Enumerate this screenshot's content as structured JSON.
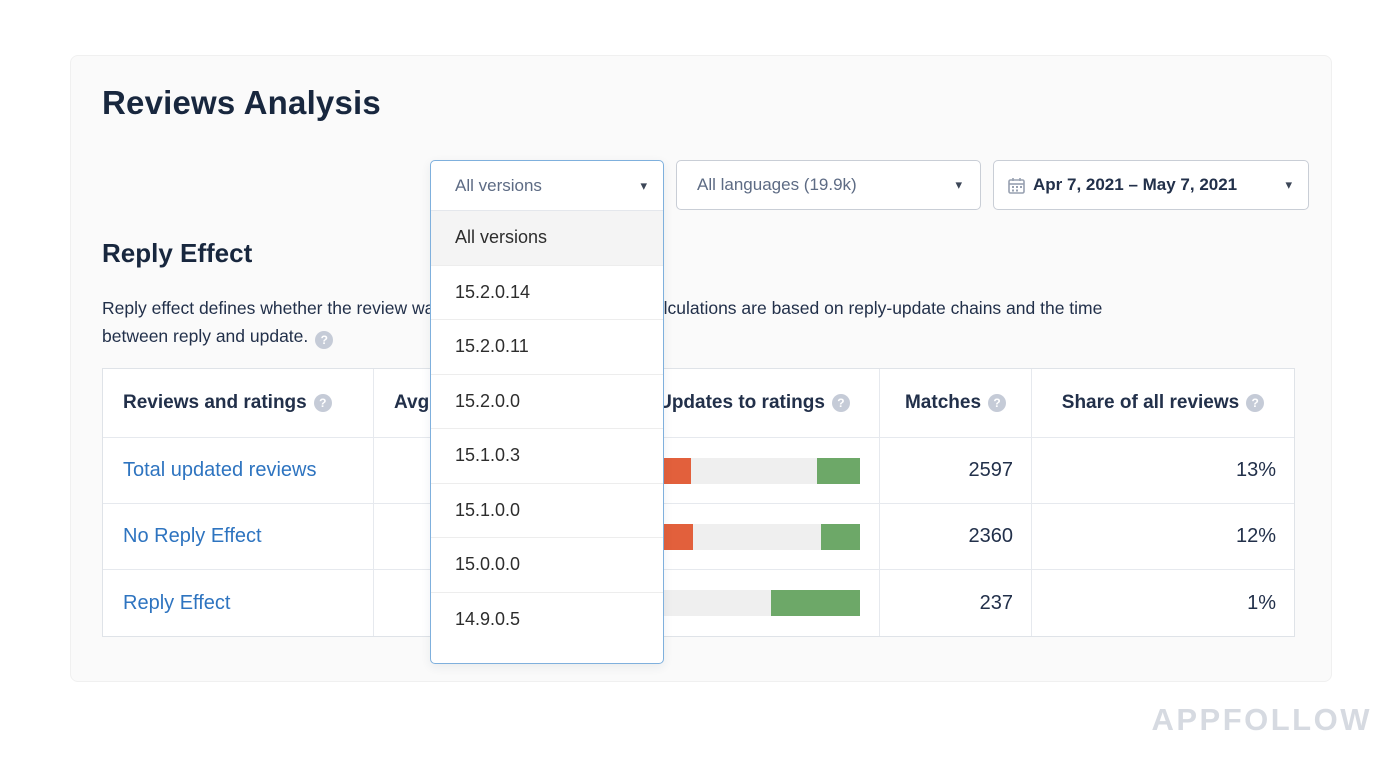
{
  "header": {
    "title": "Reviews Analysis"
  },
  "filters": {
    "versions": {
      "value": "All versions",
      "selected_index": 0,
      "options": [
        "All versions",
        "15.2.0.14",
        "15.2.0.11",
        "15.2.0.0",
        "15.1.0.3",
        "15.1.0.0",
        "15.0.0.0",
        "14.9.0.5"
      ]
    },
    "languages": {
      "value": "All languages (19.9k)"
    },
    "date_range": {
      "value": "Apr 7, 2021 – May 7, 2021",
      "icon": "calendar-icon"
    },
    "chevron": "▾"
  },
  "section": {
    "title": "Reply Effect",
    "description_line1": "Reply effect defines whether the review was updated after your reply. Calculations are based on reply-update chains and the time",
    "description_line2": "between reply and update.",
    "help_glyph": "?"
  },
  "table": {
    "columns": [
      "Reviews and ratings",
      "Avg",
      "Updates to ratings",
      "Matches",
      "Share of all reviews"
    ],
    "rows": [
      {
        "label": "Total updated reviews",
        "matches": "2597",
        "share": "13%",
        "bar": [
          {
            "width": 42,
            "color": "#e2603c"
          },
          {
            "width": 126,
            "color": "#efefef"
          },
          {
            "width": 43,
            "color": "#6da868"
          }
        ]
      },
      {
        "label": "No Reply Effect",
        "matches": "2360",
        "share": "12%",
        "bar": [
          {
            "width": 44,
            "color": "#e2603c"
          },
          {
            "width": 128,
            "color": "#efefef"
          },
          {
            "width": 39,
            "color": "#6da868"
          }
        ]
      },
      {
        "label": "Reply Effect",
        "matches": "237",
        "share": "1%",
        "bar": [
          {
            "width": 0,
            "color": "#e2603c"
          },
          {
            "width": 122,
            "color": "#efefef"
          },
          {
            "width": 89,
            "color": "#6da868"
          }
        ]
      }
    ]
  },
  "colors": {
    "negative_bar": "#e2603c",
    "neutral_bar": "#efefef",
    "positive_bar": "#6da868",
    "link_blue": "#2e74c0",
    "open_dropdown_border": "#7fb0dd"
  },
  "watermark": "APPFOLLOW"
}
